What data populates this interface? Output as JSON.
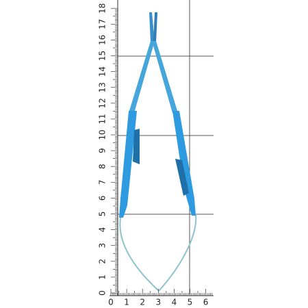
{
  "ruler": {
    "vertical_labels": [
      "0",
      "1",
      "2",
      "3",
      "4",
      "5",
      "6",
      "7",
      "8",
      "9",
      "10",
      "11",
      "12",
      "13",
      "14",
      "15",
      "16",
      "17",
      "18"
    ],
    "horizontal_labels": [
      "0",
      "1",
      "2",
      "3",
      "4",
      "5",
      "6"
    ]
  }
}
